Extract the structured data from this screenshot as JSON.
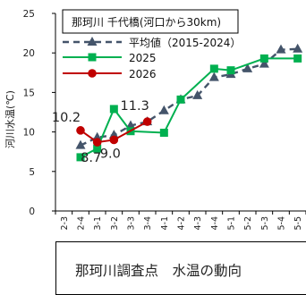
{
  "footer": {
    "text": "那珂川調査点　水温の動向"
  },
  "chart_data": {
    "type": "line",
    "title": "那珂川 千代橋(河口から30km)",
    "ylabel": "河川水温(℃)",
    "xlabel": "",
    "ylim": [
      0,
      25
    ],
    "yticks": [
      0,
      5,
      10,
      15,
      20,
      25
    ],
    "categories": [
      "2-3",
      "2-4",
      "3-1",
      "3-2",
      "3-3",
      "3-4",
      "4-1",
      "4-2",
      "4-3",
      "4-4",
      "5-1",
      "5-2",
      "5-3",
      "5-4",
      "5-5"
    ],
    "series": [
      {
        "name": "平均値（2015-2024）",
        "style": "dashed",
        "marker": "triangle",
        "color": "#44546A",
        "values": [
          null,
          8.3,
          9.3,
          9.6,
          10.8,
          11.3,
          12.7,
          14.1,
          14.6,
          16.9,
          17.3,
          18.0,
          18.6,
          20.4,
          20.5
        ]
      },
      {
        "name": "2025",
        "style": "solid",
        "marker": "square",
        "color": "#00B050",
        "values": [
          null,
          6.8,
          7.9,
          12.9,
          10.1,
          null,
          9.9,
          14.1,
          null,
          18.0,
          17.8,
          null,
          19.3,
          null,
          19.3
        ]
      },
      {
        "name": "2026",
        "style": "solid",
        "marker": "circle",
        "color": "#C00000",
        "values": [
          null,
          10.2,
          8.7,
          9.0,
          null,
          11.3,
          null,
          null,
          null,
          null,
          null,
          null,
          null,
          null,
          null
        ]
      }
    ],
    "annotations": [
      {
        "text": "10.2",
        "series": 2,
        "index": 1
      },
      {
        "text": "8.7",
        "series": 2,
        "index": 2
      },
      {
        "text": "9.0",
        "series": 2,
        "index": 3
      },
      {
        "text": "11.3",
        "series": 2,
        "index": 5
      }
    ]
  }
}
